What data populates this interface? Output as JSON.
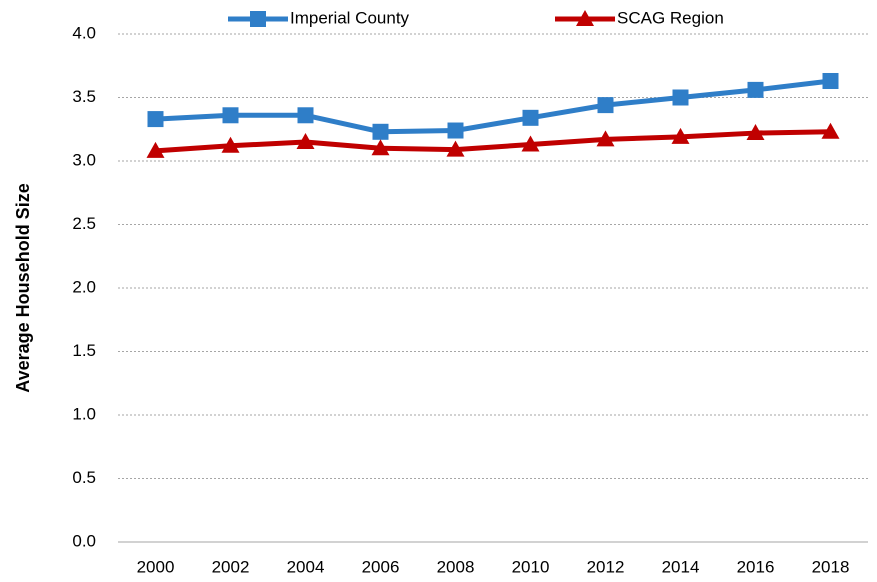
{
  "chart_data": {
    "type": "line",
    "y_label": "Average Household Size",
    "categories": [
      "2000",
      "2002",
      "2004",
      "2006",
      "2008",
      "2010",
      "2012",
      "2014",
      "2016",
      "2018"
    ],
    "series": [
      {
        "name": "Imperial County",
        "color": "#2f7ec8",
        "marker": "square",
        "values": [
          3.33,
          3.36,
          3.36,
          3.23,
          3.24,
          3.34,
          3.44,
          3.5,
          3.56,
          3.63
        ]
      },
      {
        "name": "SCAG Region",
        "color": "#c00000",
        "marker": "triangle",
        "values": [
          3.08,
          3.12,
          3.15,
          3.1,
          3.09,
          3.13,
          3.17,
          3.19,
          3.22,
          3.23
        ]
      }
    ],
    "ylim": [
      0,
      4
    ],
    "yticks": [
      {
        "value": 0,
        "label": "0.0"
      },
      0.5,
      {
        "value": 1,
        "label": "1.0"
      },
      1.5,
      {
        "value": 2,
        "label": "2.0"
      },
      2.5,
      {
        "value": 3,
        "label": "3.0"
      },
      3.5,
      {
        "value": 4,
        "label": "4.0"
      }
    ],
    "grid": true,
    "legend": "top"
  }
}
